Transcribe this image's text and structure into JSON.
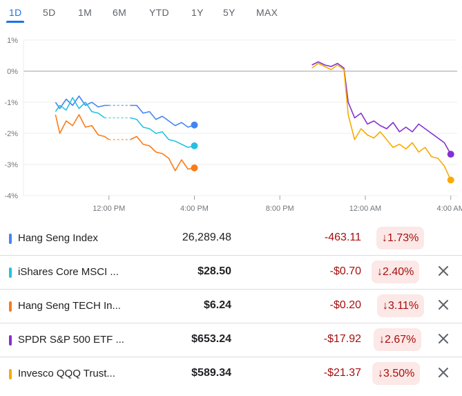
{
  "tabs": [
    "1D",
    "5D",
    "1M",
    "6M",
    "YTD",
    "1Y",
    "5Y",
    "MAX"
  ],
  "active_tab": "1D",
  "chart_data": {
    "type": "line",
    "ytick_labels": [
      "1%",
      "0%",
      "-1%",
      "-2%",
      "-3%",
      "-4%"
    ],
    "yticks": [
      1,
      0,
      -1,
      -2,
      -3,
      -4
    ],
    "ylim": [
      -4,
      1
    ],
    "xtick_labels": [
      "12:00 PM",
      "4:00 PM",
      "8:00 PM",
      "12:00 AM",
      "4:00 AM"
    ],
    "xticks": [
      12,
      16,
      20,
      24,
      28
    ],
    "xlim": [
      8,
      28.3
    ],
    "grid": true,
    "colors": {
      "hsi": "#4285f4",
      "mchi": "#24c1e0",
      "hstech": "#fa7b17",
      "spy": "#8430ce",
      "qqq": "#f9ab00"
    },
    "series": [
      {
        "name": "Hang Seng Index",
        "color": "#4285f4",
        "segments": [
          {
            "x": [
              9.5,
              9.7,
              10.0,
              10.3,
              10.6,
              10.9,
              11.2,
              11.5,
              11.8,
              12.0
            ],
            "y": [
              -1.0,
              -1.2,
              -0.9,
              -1.1,
              -0.8,
              -1.1,
              -1.0,
              -1.15,
              -1.1,
              -1.1
            ]
          },
          {
            "x": [
              13.0,
              13.3,
              13.6,
              13.9,
              14.2,
              14.5,
              14.8,
              15.1,
              15.4,
              15.7,
              16.0
            ],
            "y": [
              -1.1,
              -1.1,
              -1.35,
              -1.3,
              -1.55,
              -1.45,
              -1.6,
              -1.75,
              -1.65,
              -1.8,
              -1.73
            ]
          }
        ],
        "gap": {
          "x": [
            12.0,
            13.0
          ],
          "y": [
            -1.1,
            -1.1
          ]
        }
      },
      {
        "name": "iShares Core MSCI ...",
        "color": "#24c1e0",
        "segments": [
          {
            "x": [
              9.5,
              9.7,
              10.0,
              10.3,
              10.6,
              10.9,
              11.2,
              11.5,
              11.8
            ],
            "y": [
              -1.3,
              -1.1,
              -1.25,
              -0.85,
              -1.2,
              -1.0,
              -1.3,
              -1.35,
              -1.5
            ]
          },
          {
            "x": [
              13.0,
              13.3,
              13.6,
              13.9,
              14.2,
              14.5,
              14.8,
              15.1,
              15.4,
              15.7,
              16.0
            ],
            "y": [
              -1.5,
              -1.55,
              -1.8,
              -1.85,
              -2.0,
              -1.95,
              -2.2,
              -2.25,
              -2.35,
              -2.45,
              -2.4
            ]
          }
        ],
        "gap": {
          "x": [
            11.8,
            13.0
          ],
          "y": [
            -1.5,
            -1.5
          ]
        }
      },
      {
        "name": "Hang Seng TECH In...",
        "color": "#fa7b17",
        "segments": [
          {
            "x": [
              9.5,
              9.7,
              10.0,
              10.3,
              10.6,
              10.9,
              11.2,
              11.5,
              11.8,
              12.0
            ],
            "y": [
              -1.4,
              -2.0,
              -1.6,
              -1.75,
              -1.4,
              -1.8,
              -1.75,
              -2.05,
              -2.1,
              -2.2
            ]
          },
          {
            "x": [
              13.0,
              13.3,
              13.6,
              13.9,
              14.2,
              14.5,
              14.8,
              15.1,
              15.4,
              15.7,
              16.0
            ],
            "y": [
              -2.2,
              -2.1,
              -2.35,
              -2.4,
              -2.6,
              -2.65,
              -2.8,
              -3.2,
              -2.85,
              -3.15,
              -3.11
            ]
          }
        ],
        "gap": {
          "x": [
            12.0,
            13.0
          ],
          "y": [
            -2.2,
            -2.2
          ]
        }
      },
      {
        "name": "SPDR S&P 500 ETF ...",
        "color": "#8430ce",
        "segments": [
          {
            "x": [
              21.5,
              21.8,
              22.1,
              22.4,
              22.7,
              23.0,
              23.2,
              23.5,
              23.8,
              24.1,
              24.4,
              24.7,
              25.0,
              25.3,
              25.6,
              25.9,
              26.2,
              26.5,
              26.8,
              27.1,
              27.4,
              27.7,
              28.0
            ],
            "y": [
              0.2,
              0.3,
              0.2,
              0.15,
              0.25,
              0.1,
              -1.0,
              -1.5,
              -1.35,
              -1.7,
              -1.6,
              -1.75,
              -1.85,
              -1.65,
              -1.95,
              -1.8,
              -1.95,
              -1.7,
              -1.85,
              -2.0,
              -2.15,
              -2.3,
              -2.67
            ]
          }
        ]
      },
      {
        "name": "Invesco QQQ Trust...",
        "color": "#f9ab00",
        "segments": [
          {
            "x": [
              21.5,
              21.8,
              22.1,
              22.4,
              22.7,
              23.0,
              23.2,
              23.5,
              23.8,
              24.1,
              24.4,
              24.7,
              25.0,
              25.3,
              25.6,
              25.9,
              26.2,
              26.5,
              26.8,
              27.1,
              27.4,
              27.7,
              28.0
            ],
            "y": [
              0.1,
              0.25,
              0.15,
              0.05,
              0.2,
              0.05,
              -1.4,
              -2.2,
              -1.85,
              -2.05,
              -2.15,
              -1.95,
              -2.2,
              -2.45,
              -2.35,
              -2.5,
              -2.3,
              -2.6,
              -2.45,
              -2.75,
              -2.8,
              -3.05,
              -3.5
            ]
          }
        ]
      }
    ]
  },
  "rows": [
    {
      "name": "Hang Seng Index",
      "color": "#4285f4",
      "price": "26,289.48",
      "change": "-463.11",
      "percent": "↓1.73%",
      "close_icon": "",
      "bold": false
    },
    {
      "name": "iShares Core MSCI ...",
      "color": "#24c1e0",
      "price": "$28.50",
      "change": "-$0.70",
      "percent": "↓2.40%",
      "close_icon": "close-icon",
      "bold": true
    },
    {
      "name": "Hang Seng TECH In...",
      "color": "#fa7b17",
      "price": "$6.24",
      "change": "-$0.20",
      "percent": "↓3.11%",
      "close_icon": "close-icon",
      "bold": true
    },
    {
      "name": "SPDR S&P 500 ETF ...",
      "color": "#8430ce",
      "price": "$653.24",
      "change": "-$17.92",
      "percent": "↓2.67%",
      "close_icon": "close-icon",
      "bold": true
    },
    {
      "name": "Invesco QQQ Trust...",
      "color": "#f9ab00",
      "price": "$589.34",
      "change": "-$21.37",
      "percent": "↓3.50%",
      "close_icon": "close-icon",
      "bold": true
    }
  ]
}
